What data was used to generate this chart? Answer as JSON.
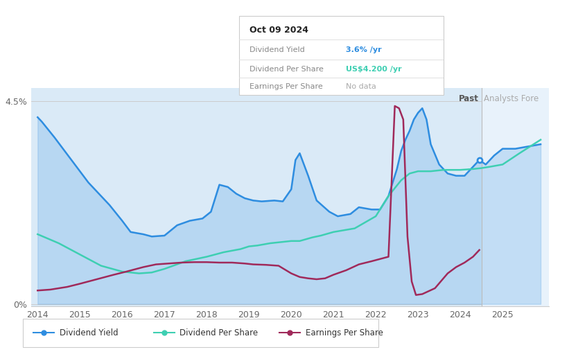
{
  "tooltip_date": "Oct 09 2024",
  "tooltip_div_yield": "3.6%",
  "tooltip_div_per_share": "US$4.200",
  "tooltip_eps": "No data",
  "past_label": "Past",
  "forecast_label": "Analysts Fore",
  "bg_color": "#ffffff",
  "plot_bg_color": "#daeaf7",
  "forecast_bg_color": "#e8f2fb",
  "div_yield_color": "#2e8de0",
  "div_per_share_color": "#3ecfb2",
  "eps_color": "#a0295a",
  "legend_items": [
    "Dividend Yield",
    "Dividend Per Share",
    "Earnings Per Share"
  ],
  "div_yield_x": [
    2014.0,
    2014.1,
    2014.4,
    2014.8,
    2015.2,
    2015.7,
    2016.0,
    2016.2,
    2016.5,
    2016.7,
    2017.0,
    2017.3,
    2017.6,
    2017.9,
    2018.1,
    2018.3,
    2018.5,
    2018.7,
    2018.9,
    2019.1,
    2019.3,
    2019.6,
    2019.8,
    2020.0,
    2020.1,
    2020.2,
    2020.4,
    2020.6,
    2020.9,
    2021.1,
    2021.4,
    2021.6,
    2021.9,
    2022.1,
    2022.3,
    2022.5,
    2022.6,
    2022.7,
    2022.8,
    2022.9,
    2023.0,
    2023.1,
    2023.2,
    2023.3,
    2023.5,
    2023.7,
    2023.9,
    2024.1,
    2024.3,
    2024.45,
    2024.6,
    2024.8,
    2025.0,
    2025.3,
    2025.6,
    2025.9
  ],
  "div_yield_y": [
    4.15,
    4.05,
    3.7,
    3.2,
    2.7,
    2.2,
    1.85,
    1.6,
    1.55,
    1.5,
    1.52,
    1.75,
    1.85,
    1.9,
    2.05,
    2.65,
    2.6,
    2.45,
    2.35,
    2.3,
    2.28,
    2.3,
    2.28,
    2.55,
    3.2,
    3.35,
    2.85,
    2.3,
    2.05,
    1.95,
    2.0,
    2.15,
    2.1,
    2.1,
    2.4,
    3.0,
    3.4,
    3.65,
    3.85,
    4.1,
    4.25,
    4.35,
    4.1,
    3.55,
    3.1,
    2.9,
    2.85,
    2.85,
    3.05,
    3.2,
    3.1,
    3.3,
    3.45,
    3.45,
    3.5,
    3.55
  ],
  "div_per_share_x": [
    2014.0,
    2014.5,
    2015.0,
    2015.5,
    2016.0,
    2016.4,
    2016.7,
    2017.0,
    2017.5,
    2018.0,
    2018.4,
    2018.8,
    2019.0,
    2019.2,
    2019.5,
    2019.8,
    2020.0,
    2020.2,
    2020.5,
    2020.7,
    2021.0,
    2021.5,
    2022.0,
    2022.3,
    2022.6,
    2022.8,
    2023.0,
    2023.3,
    2023.6,
    2024.0,
    2024.3,
    2024.5,
    2024.7,
    2025.0,
    2025.4,
    2025.9
  ],
  "div_per_share_y": [
    1.55,
    1.35,
    1.1,
    0.85,
    0.72,
    0.68,
    0.7,
    0.78,
    0.95,
    1.05,
    1.15,
    1.22,
    1.28,
    1.3,
    1.35,
    1.38,
    1.4,
    1.4,
    1.48,
    1.52,
    1.6,
    1.68,
    1.95,
    2.4,
    2.75,
    2.9,
    2.95,
    2.95,
    2.98,
    2.98,
    3.0,
    3.02,
    3.05,
    3.1,
    3.35,
    3.65
  ],
  "eps_x": [
    2014.0,
    2014.3,
    2014.7,
    2015.0,
    2015.4,
    2015.8,
    2016.1,
    2016.5,
    2016.8,
    2017.1,
    2017.4,
    2017.7,
    2018.0,
    2018.3,
    2018.6,
    2018.9,
    2019.1,
    2019.4,
    2019.7,
    2020.0,
    2020.2,
    2020.4,
    2020.6,
    2020.8,
    2021.0,
    2021.3,
    2021.6,
    2021.9,
    2022.1,
    2022.3,
    2022.45,
    2022.55,
    2022.65,
    2022.75,
    2022.85,
    2022.95,
    2023.1,
    2023.4,
    2023.7,
    2023.9,
    2024.1,
    2024.3,
    2024.45
  ],
  "eps_y": [
    0.3,
    0.32,
    0.38,
    0.45,
    0.55,
    0.65,
    0.72,
    0.82,
    0.88,
    0.9,
    0.92,
    0.93,
    0.93,
    0.92,
    0.92,
    0.9,
    0.88,
    0.87,
    0.85,
    0.68,
    0.6,
    0.57,
    0.55,
    0.57,
    0.65,
    0.75,
    0.88,
    0.95,
    1.0,
    1.05,
    4.4,
    4.35,
    4.1,
    1.5,
    0.5,
    0.2,
    0.22,
    0.35,
    0.68,
    0.82,
    0.92,
    1.05,
    1.2
  ],
  "past_line_x": 2024.5,
  "xmin": 2013.85,
  "xmax": 2026.1,
  "ymin": -0.05,
  "ymax": 4.8,
  "ytick_positions": [
    0,
    4.5
  ],
  "ytick_labels": [
    "0%",
    "4.5%"
  ],
  "xtick_positions": [
    2014,
    2015,
    2016,
    2017,
    2018,
    2019,
    2020,
    2021,
    2022,
    2023,
    2024,
    2025
  ],
  "xtick_labels": [
    "2014",
    "2015",
    "2016",
    "2017",
    "2018",
    "2019",
    "2020",
    "2021",
    "2022",
    "2023",
    "2024",
    "2025"
  ]
}
